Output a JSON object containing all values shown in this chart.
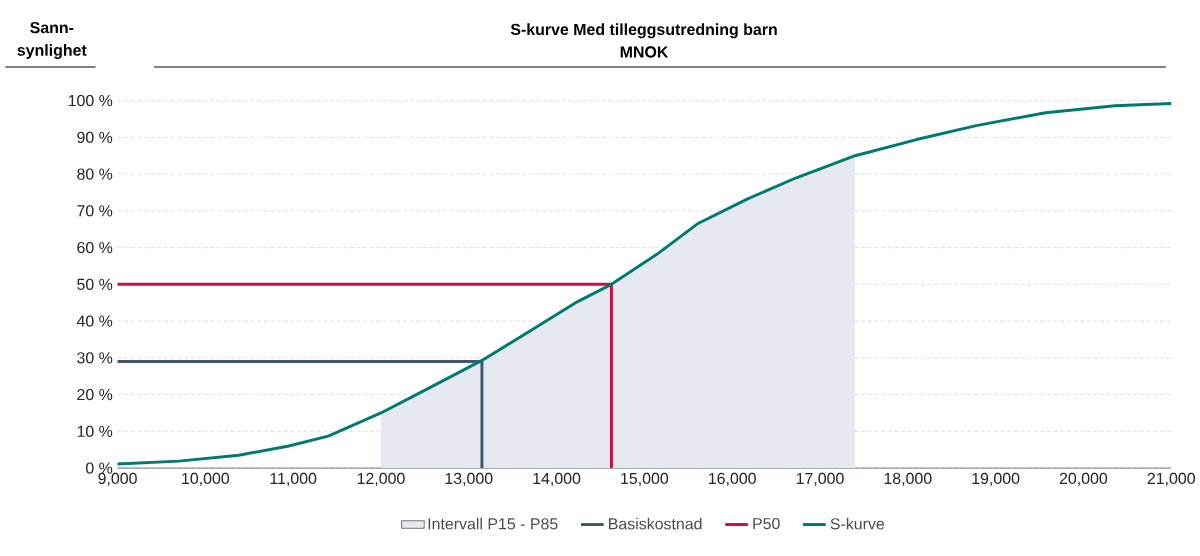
{
  "chart_data": {
    "type": "line",
    "title": "S-kurve Med tilleggsutredning barn",
    "subtitle": "MNOK",
    "ylabel": "Sann-synlighet",
    "xlim": [
      9000,
      21000
    ],
    "ylim": [
      0,
      100
    ],
    "xticks": [
      {
        "value": 9000,
        "label": "9,000"
      },
      {
        "value": 10000,
        "label": "10,000"
      },
      {
        "value": 11000,
        "label": "11,000"
      },
      {
        "value": 12000,
        "label": "12,000"
      },
      {
        "value": 13000,
        "label": "13,000"
      },
      {
        "value": 14000,
        "label": "14,000"
      },
      {
        "value": 15000,
        "label": "15,000"
      },
      {
        "value": 16000,
        "label": "16,000"
      },
      {
        "value": 17000,
        "label": "17,000"
      },
      {
        "value": 18000,
        "label": "18,000"
      },
      {
        "value": 19000,
        "label": "19,000"
      },
      {
        "value": 20000,
        "label": "20,000"
      },
      {
        "value": 21000,
        "label": "21,000"
      }
    ],
    "yticks": [
      {
        "value": 0,
        "label": "0 %"
      },
      {
        "value": 10,
        "label": "10 %"
      },
      {
        "value": 20,
        "label": "20 %"
      },
      {
        "value": 30,
        "label": "30 %"
      },
      {
        "value": 40,
        "label": "40 %"
      },
      {
        "value": 50,
        "label": "50 %"
      },
      {
        "value": 60,
        "label": "60 %"
      },
      {
        "value": 70,
        "label": "70 %"
      },
      {
        "value": 80,
        "label": "80 %"
      },
      {
        "value": 90,
        "label": "90 %"
      },
      {
        "value": 100,
        "label": "100 %"
      }
    ],
    "grid": "y",
    "legend": "bottom",
    "series": [
      {
        "name": "Intervall P15 - P85",
        "type": "area",
        "color": "#e5e8ee",
        "x": [
          12000,
          12540,
          13150,
          13670,
          14240,
          14625,
          15150,
          15600,
          16170,
          16730,
          17400
        ],
        "values": [
          15,
          21.7,
          29.3,
          36.9,
          45.3,
          50,
          58.3,
          66.4,
          73.2,
          79,
          85
        ]
      },
      {
        "name": "Basiskostnad",
        "type": "line",
        "color": "#44546a",
        "x": [
          9000,
          13150,
          13150
        ],
        "values": [
          29,
          29,
          0
        ]
      },
      {
        "name": "P50",
        "type": "line",
        "color": "#c8103e",
        "x": [
          9000,
          14625,
          14625
        ],
        "values": [
          50,
          50,
          0
        ]
      },
      {
        "name": "S-kurve",
        "type": "line",
        "color": "#007a6e",
        "x": [
          9000,
          9700,
          10380,
          10950,
          11400,
          12000,
          12540,
          13150,
          13670,
          14240,
          14625,
          15150,
          15600,
          16170,
          16730,
          17400,
          18100,
          18780,
          19570,
          20360,
          21000
        ],
        "values": [
          1.1,
          1.9,
          3.5,
          6,
          8.7,
          15,
          21.7,
          29.3,
          36.9,
          45.3,
          50,
          58.3,
          66.4,
          73.2,
          79,
          85,
          89.4,
          93.2,
          96.7,
          98.6,
          99.2
        ]
      }
    ]
  }
}
